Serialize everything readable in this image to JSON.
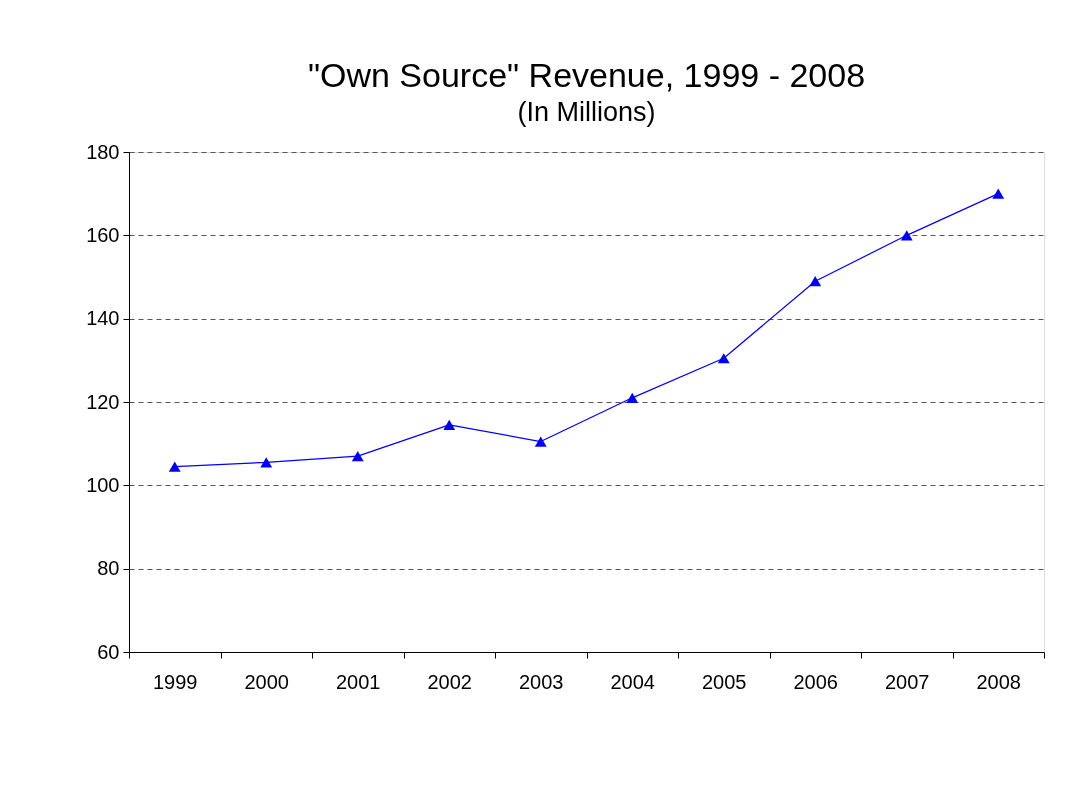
{
  "chart_data": {
    "type": "line",
    "title": "\"Own Source\" Revenue, 1999 - 2008",
    "subtitle": "(In Millions)",
    "categories": [
      "1999",
      "2000",
      "2001",
      "2002",
      "2003",
      "2004",
      "2005",
      "2006",
      "2007",
      "2008"
    ],
    "series": [
      {
        "color": "#0000ff",
        "values": [
          104.5,
          105.5,
          107,
          114.5,
          110.5,
          121,
          130.5,
          149,
          160,
          170
        ]
      }
    ],
    "ylim": [
      60,
      180
    ],
    "yticks": [
      60,
      80,
      100,
      120,
      140,
      160,
      180
    ],
    "grid": "y",
    "marker": "triangle",
    "line_style": "solid"
  }
}
